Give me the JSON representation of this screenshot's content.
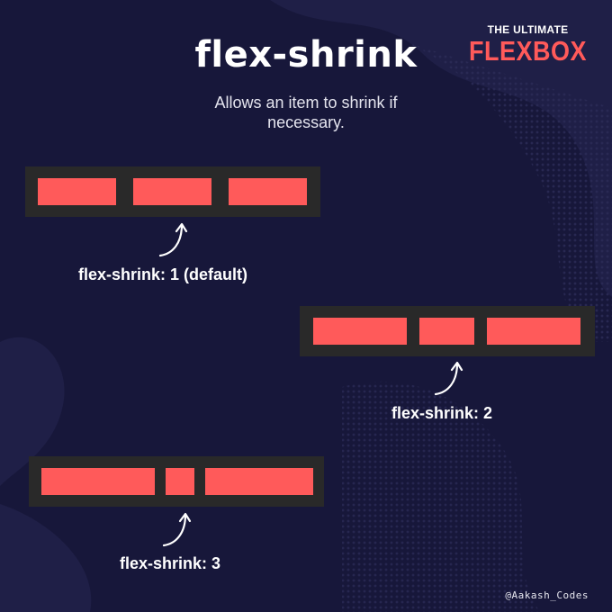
{
  "brand": {
    "small": "THE ULTIMATE",
    "big": "FLEXBOX"
  },
  "title": "flex-shrink",
  "subtitle": "Allows an item to shrink if\nnecessary.",
  "examples": [
    {
      "label": "flex-shrink: 1 (default)"
    },
    {
      "label": "flex-shrink: 2"
    },
    {
      "label": "flex-shrink: 3"
    }
  ],
  "handle": "@Aakash_Codes",
  "colors": {
    "background": "#17173a",
    "container": "#292929",
    "item": "#ff5a5a",
    "text": "#ffffff"
  }
}
